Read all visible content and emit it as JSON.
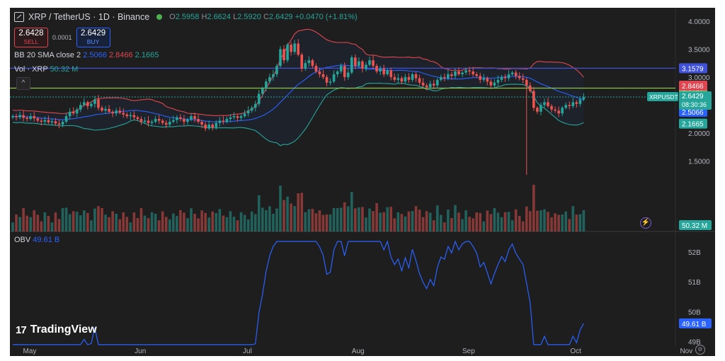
{
  "header": {
    "symbol": "XRP / TetherUS · 1D · Binance",
    "open_label": "O",
    "open": "2.5958",
    "high_label": "H",
    "high": "2.6624",
    "low_label": "L",
    "low": "2.5920",
    "close_label": "C",
    "close": "2.6429",
    "change": "+0.0470 (+1.81%)"
  },
  "trade": {
    "sell_price": "2.6428",
    "sell_label": "SELL",
    "spread": "0.0001",
    "buy_price": "2.6429",
    "buy_label": "BUY"
  },
  "indicators": {
    "bb_label": "BB 20 SMA close 2",
    "bb_basis": "2.5066",
    "bb_upper": "2.8466",
    "bb_lower": "2.1665",
    "vol_label": "Vol · XRP",
    "vol_value": "50.32 M",
    "obv_label": "OBV",
    "obv_value": "49.61 B"
  },
  "brand": {
    "name": "TradingView",
    "icon": "tradingview-logo-icon"
  },
  "colors": {
    "up": "#26a69a",
    "down": "#ef5350",
    "basis": "#2962ff",
    "upper": "#e04650",
    "lower": "#26a69a",
    "hline_blue": "#3f51d8",
    "hline_green": "#8bc34a",
    "obv": "#2962ff"
  },
  "chart_data": [
    {
      "type": "candlestick",
      "title": "XRP / TetherUS · 1D · Binance",
      "ylim": [
        1.2,
        4.1
      ],
      "price_ticks": [
        "4.0000",
        "3.5000",
        "3.0000",
        "2.5000",
        "2.0000",
        "1.5000"
      ],
      "x_ticks": [
        {
          "label": "May",
          "day": 0
        },
        {
          "label": "Jun",
          "day": 31
        },
        {
          "label": "Jul",
          "day": 61
        },
        {
          "label": "Aug",
          "day": 92
        },
        {
          "label": "Sep",
          "day": 123
        },
        {
          "label": "Oct",
          "day": 153
        },
        {
          "label": "Nov",
          "day": 184
        }
      ],
      "horizontal_lines": [
        {
          "label": "3.1579",
          "value": 3.1579,
          "color": "#3f51d8"
        },
        {
          "label": "2.8020",
          "value": 2.802,
          "color": "#8bc34a"
        }
      ],
      "price_tags": [
        {
          "label": "2.8466",
          "value": 2.8466,
          "color": "#e04650"
        },
        {
          "label": "2.5066",
          "value": 2.5066,
          "color": "#2962ff"
        },
        {
          "label": "2.1665",
          "value": 2.1665,
          "color": "#26a69a"
        }
      ],
      "last": {
        "symbol": "XRPUSDT",
        "price": "2.6429",
        "value": 2.6429,
        "countdown": "08:30:36"
      },
      "volume_tag": {
        "label": "50.32 M"
      },
      "close": [
        2.3,
        2.28,
        2.32,
        2.27,
        2.25,
        2.3,
        2.26,
        2.22,
        2.2,
        2.23,
        2.19,
        2.21,
        2.17,
        2.15,
        2.2,
        2.3,
        2.38,
        2.35,
        2.42,
        2.5,
        2.55,
        2.48,
        2.52,
        2.6,
        2.45,
        2.4,
        2.43,
        2.38,
        2.35,
        2.4,
        2.36,
        2.33,
        2.3,
        2.32,
        2.28,
        2.25,
        2.2,
        2.22,
        2.18,
        2.2,
        2.25,
        2.22,
        2.18,
        2.15,
        2.2,
        2.23,
        2.28,
        2.25,
        2.2,
        2.24,
        2.3,
        2.25,
        2.2,
        2.15,
        2.08,
        2.15,
        2.1,
        2.18,
        2.22,
        2.2,
        2.25,
        2.28,
        2.3,
        2.27,
        2.3,
        2.35,
        2.4,
        2.45,
        2.52,
        2.7,
        2.8,
        2.92,
        3.0,
        3.05,
        3.2,
        3.5,
        3.3,
        3.58,
        3.45,
        3.6,
        3.4,
        3.15,
        3.25,
        3.3,
        3.2,
        3.1,
        3.05,
        3.0,
        2.9,
        2.92,
        3.05,
        3.1,
        3.2,
        3.0,
        3.08,
        3.35,
        3.2,
        3.28,
        3.15,
        3.22,
        3.3,
        3.2,
        3.1,
        3.15,
        3.05,
        3.12,
        3.0,
        2.95,
        2.98,
        2.92,
        3.0,
        2.95,
        3.05,
        2.98,
        2.9,
        2.85,
        2.82,
        2.88,
        2.85,
        2.95,
        3.0,
        2.98,
        3.05,
        3.02,
        3.1,
        3.05,
        3.08,
        3.12,
        3.1,
        3.05,
        3.02,
        2.95,
        2.98,
        2.92,
        2.85,
        2.9,
        2.95,
        3.0,
        2.98,
        3.05,
        3.08,
        3.02,
        2.98,
        2.95,
        2.85,
        2.75,
        2.45,
        2.38,
        2.5,
        2.55,
        2.48,
        2.42,
        2.4,
        2.35,
        2.45,
        2.5,
        2.48,
        2.55,
        2.52,
        2.6,
        2.64
      ],
      "volume_scale_label": "50.32 M",
      "bollinger": {
        "length": 20,
        "mult": 2,
        "basis": 2.5066,
        "upper": 2.8466,
        "lower": 2.1665
      }
    },
    {
      "type": "line",
      "title": "OBV",
      "ylabel": "",
      "yticks": [
        "52B",
        "51B",
        "50B",
        "49B"
      ],
      "ylim": [
        48.85,
        52.4
      ],
      "series": [
        {
          "name": "OBV",
          "value_label": "49.61 B"
        }
      ]
    }
  ]
}
